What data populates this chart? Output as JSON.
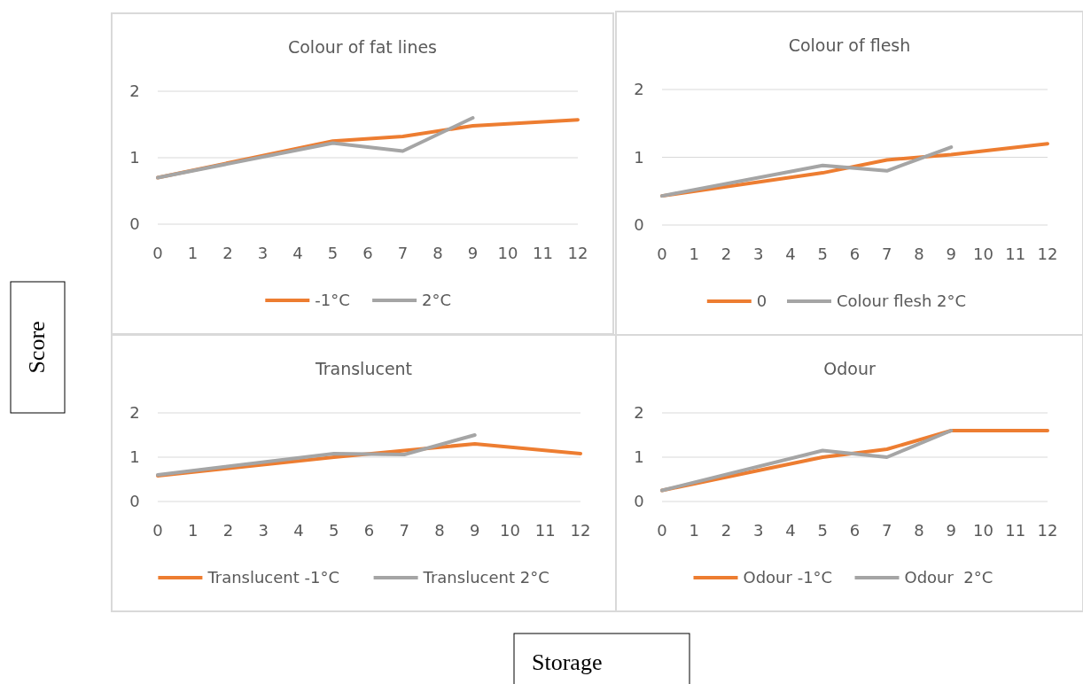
{
  "chart_data": [
    {
      "type": "line",
      "title": "Colour of fat lines",
      "ylabel": "Score",
      "xlim": [
        0,
        12
      ],
      "xticks": [
        0,
        1,
        2,
        3,
        4,
        5,
        6,
        7,
        8,
        9,
        10,
        11,
        12
      ],
      "ylim": [
        0,
        2
      ],
      "yticks": [
        0,
        1,
        2
      ],
      "grid": "y",
      "legend": "bottom",
      "marker": "none",
      "line_style": "solid",
      "series": [
        {
          "name": "-1°C",
          "color": "#ed7d31",
          "x": [
            0,
            5,
            7,
            9,
            12
          ],
          "values": [
            0.7,
            1.25,
            1.32,
            1.48,
            1.57
          ]
        },
        {
          "name": "2°C",
          "color": "#a5a5a5",
          "x": [
            0,
            5,
            7,
            9
          ],
          "values": [
            0.7,
            1.22,
            1.1,
            1.6
          ]
        }
      ]
    },
    {
      "type": "line",
      "title": "Colour of flesh",
      "xlim": [
        0,
        12
      ],
      "xticks": [
        0,
        1,
        2,
        3,
        4,
        5,
        6,
        7,
        8,
        9,
        10,
        11,
        12
      ],
      "ylim": [
        0,
        2
      ],
      "yticks": [
        0,
        1,
        2
      ],
      "grid": "y",
      "legend": "bottom",
      "marker": "none",
      "line_style": "solid",
      "series": [
        {
          "name": "0",
          "color": "#ed7d31",
          "x": [
            0,
            5,
            7,
            9,
            12
          ],
          "values": [
            0.43,
            0.77,
            0.96,
            1.04,
            1.2
          ]
        },
        {
          "name": "Colour flesh 2°C",
          "color": "#a5a5a5",
          "x": [
            0,
            5,
            7,
            9
          ],
          "values": [
            0.43,
            0.88,
            0.8,
            1.15
          ]
        }
      ]
    },
    {
      "type": "line",
      "title": "Translucent",
      "xlabel": "Storage",
      "xlim": [
        0,
        12
      ],
      "xticks": [
        0,
        1,
        2,
        3,
        4,
        5,
        6,
        7,
        8,
        9,
        10,
        11,
        12
      ],
      "ylim": [
        0,
        2
      ],
      "yticks": [
        0,
        1,
        2
      ],
      "grid": "y",
      "legend": "bottom",
      "marker": "none",
      "line_style": "solid",
      "series": [
        {
          "name": "Translucent -1°C",
          "color": "#ed7d31",
          "x": [
            0,
            5,
            7,
            9,
            12
          ],
          "values": [
            0.58,
            1.0,
            1.15,
            1.3,
            1.08
          ]
        },
        {
          "name": "Translucent 2°C",
          "color": "#a5a5a5",
          "x": [
            0,
            5,
            7,
            9
          ],
          "values": [
            0.6,
            1.08,
            1.06,
            1.5
          ]
        }
      ]
    },
    {
      "type": "line",
      "title": "Odour",
      "xlim": [
        0,
        12
      ],
      "xticks": [
        0,
        1,
        2,
        3,
        4,
        5,
        6,
        7,
        8,
        9,
        10,
        11,
        12
      ],
      "ylim": [
        0,
        2
      ],
      "yticks": [
        0,
        1,
        2
      ],
      "grid": "y",
      "legend": "bottom",
      "marker": "none",
      "line_style": "solid",
      "series": [
        {
          "name": "Odour -1°C",
          "color": "#ed7d31",
          "x": [
            0,
            5,
            7,
            9,
            12
          ],
          "values": [
            0.25,
            1.0,
            1.18,
            1.6,
            1.6
          ]
        },
        {
          "name": "Odour  2°C",
          "color": "#a5a5a5",
          "x": [
            0,
            5,
            7,
            9
          ],
          "values": [
            0.25,
            1.15,
            1.0,
            1.6
          ]
        }
      ]
    }
  ]
}
